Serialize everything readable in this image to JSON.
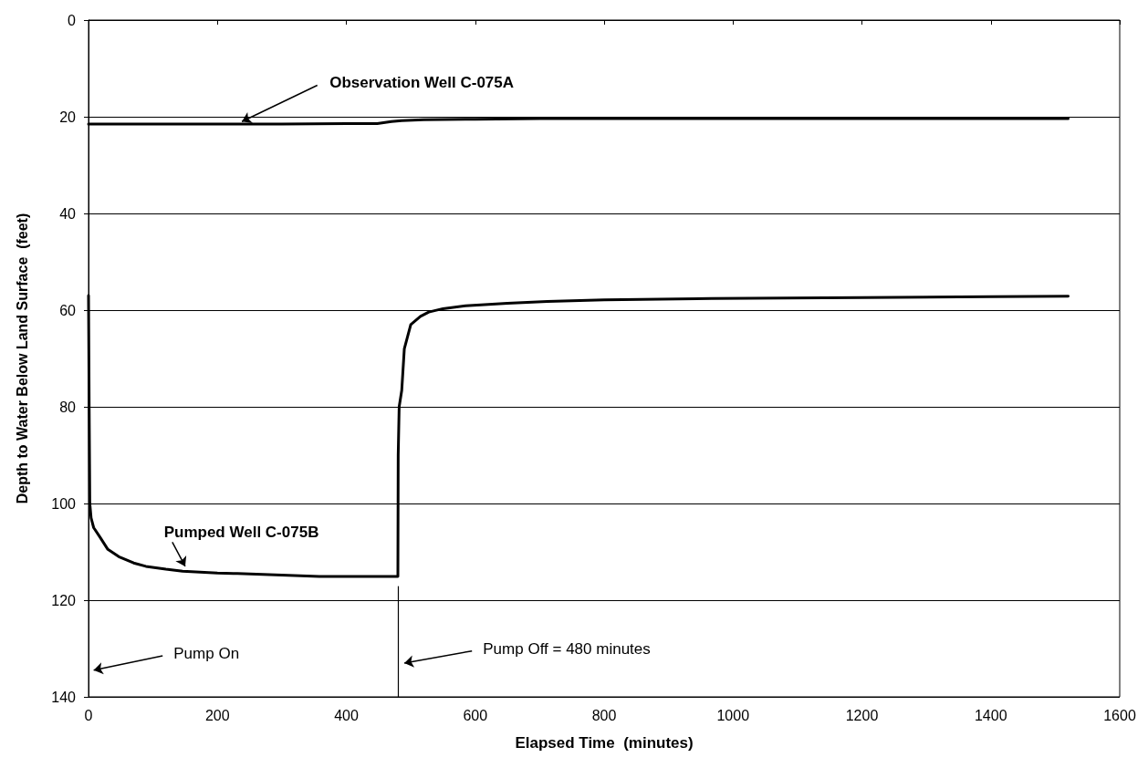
{
  "chart_data": {
    "type": "line",
    "xlabel": "Elapsed Time  (minutes)",
    "ylabel": "Depth to Water Below Land Surface  (feet)",
    "xlim": [
      0,
      1600
    ],
    "xticks": [
      0,
      200,
      400,
      600,
      800,
      1000,
      1200,
      1400,
      1600
    ],
    "ylim": [
      140,
      0
    ],
    "yticks": [
      0,
      20,
      40,
      60,
      80,
      100,
      120,
      140
    ],
    "grid": "y",
    "legend": false,
    "marker": "none",
    "line_style": "solid",
    "series": [
      {
        "name": "Observation Well C-075A",
        "color": "#000000",
        "x": [
          0,
          100,
          200,
          300,
          400,
          448,
          470,
          486,
          520,
          600,
          700,
          800,
          1000,
          1200,
          1400,
          1520
        ],
        "values": [
          21.5,
          21.5,
          21.5,
          21.5,
          21.4,
          21.4,
          21.0,
          20.8,
          20.6,
          20.5,
          20.4,
          20.4,
          20.4,
          20.4,
          20.4,
          20.4
        ]
      },
      {
        "name": "Pumped Well C-075B",
        "color": "#000000",
        "x": [
          0,
          1,
          2,
          4,
          8,
          18,
          30,
          47,
          70,
          89,
          120,
          146,
          200,
          231,
          300,
          358,
          420,
          480,
          480.5,
          482,
          486,
          490,
          500,
          515,
          528,
          550,
          585,
          650,
          712,
          800,
          967,
          1200,
          1400,
          1520
        ],
        "values": [
          57,
          80,
          100,
          103,
          105,
          107,
          109.5,
          111,
          112.3,
          113,
          113.6,
          114,
          114.4,
          114.5,
          114.8,
          115.1,
          115.1,
          115.1,
          90,
          80,
          76.6,
          68,
          63,
          61.3,
          60.4,
          59.7,
          59.1,
          58.6,
          58.2,
          57.9,
          57.6,
          57.4,
          57.2,
          57.1
        ]
      }
    ],
    "annotations": [
      "Pump On",
      "Pump Off = 480 minutes"
    ],
    "ref_lines": [
      {
        "axis": "x",
        "value": 480,
        "label": null
      }
    ]
  }
}
